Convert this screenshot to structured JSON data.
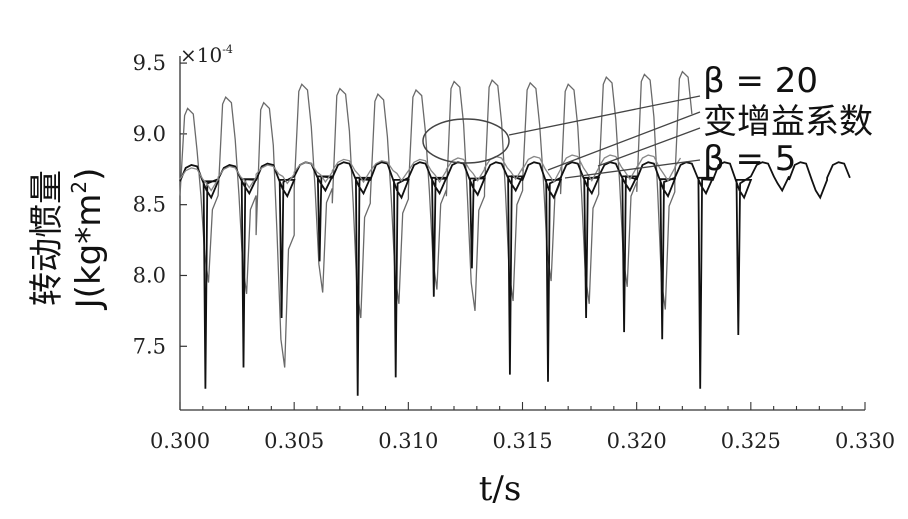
{
  "chart_data": {
    "type": "line",
    "title": "",
    "xlabel": "t/s",
    "ylabel_line1": "转动惯量",
    "ylabel_line2": "J(kg*m",
    "ylabel_sup": "2",
    "ylabel_close": ")",
    "y_multiplier_base": "×10",
    "y_multiplier_exp": "-4",
    "xlim": [
      0.3,
      0.33
    ],
    "ylim": [
      7.05,
      9.55
    ],
    "x_ticks": [
      "0.300",
      "0.305",
      "0.310",
      "0.315",
      "0.320",
      "0.325",
      "0.330"
    ],
    "y_ticks": [
      "7.5",
      "8.0",
      "8.5",
      "9.0",
      "9.5"
    ],
    "grid": false,
    "period": 0.001667,
    "series": [
      {
        "name": "β = 20",
        "color": "#6a6a6a",
        "x_range": [
          0.3,
          0.3225
        ],
        "peaks": [
          9.18,
          9.26,
          9.22,
          9.35,
          9.32,
          9.28,
          9.31,
          9.37,
          9.38,
          9.36,
          9.35,
          9.4,
          9.42,
          9.44,
          9.46,
          9.47,
          9.45,
          9.42
        ],
        "troughs": [
          7.95,
          7.87,
          7.35,
          7.88,
          7.7,
          7.8,
          7.9,
          7.75,
          7.82,
          7.96,
          7.8,
          7.92,
          7.76,
          7.9,
          7.92,
          7.95,
          7.85,
          7.88
        ]
      },
      {
        "name": "变增益系数",
        "color": "#111111",
        "x_range": [
          0.3,
          0.3295
        ],
        "peaks": [
          8.78,
          8.78,
          8.79,
          8.8,
          8.8,
          8.8,
          8.8,
          8.8,
          8.8,
          8.8,
          8.8,
          8.8,
          8.8,
          8.8,
          8.8,
          8.8,
          8.8,
          8.8
        ],
        "troughs": [
          8.55,
          8.58,
          8.56,
          8.6,
          8.58,
          8.55,
          8.58,
          8.57,
          8.6,
          8.55,
          8.58,
          8.6,
          8.56,
          8.58,
          8.55,
          8.6,
          8.55,
          8.58
        ],
        "spikes": [
          7.2,
          7.35,
          7.7,
          8.1,
          7.15,
          7.28,
          7.85,
          8.05,
          7.3,
          7.25,
          7.7,
          7.6,
          7.55,
          7.2,
          7.58
        ]
      },
      {
        "name": "β = 5",
        "color": "#888888",
        "x_range": [
          0.3,
          0.322
        ],
        "peaks": [
          8.76,
          8.77,
          8.78,
          8.8,
          8.82,
          8.81,
          8.82,
          8.83,
          8.84,
          8.84,
          8.85,
          8.85,
          8.85,
          8.85
        ],
        "troughs": [
          8.6,
          8.62,
          8.65,
          8.66,
          8.66,
          8.67,
          8.66,
          8.67,
          8.68,
          8.66,
          8.67,
          8.68,
          8.67,
          8.68
        ]
      }
    ],
    "annotations": {
      "beta20": "β = 20",
      "variable_gain": "变增益系数",
      "beta5": "β = 5"
    },
    "ellipse_center": [
      0.3125,
      8.98
    ]
  }
}
